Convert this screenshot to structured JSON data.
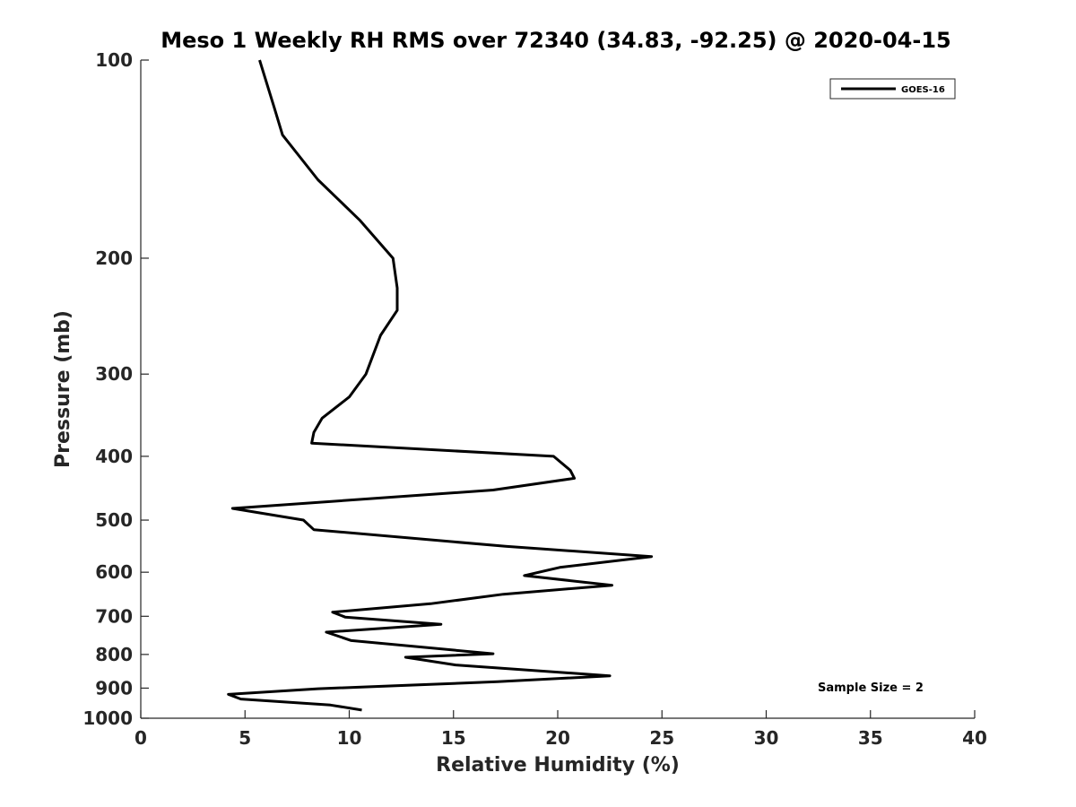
{
  "chart_data": {
    "type": "line",
    "title": "Meso 1 Weekly RH RMS over 72340 (34.83, -92.25) @ 2020-04-15",
    "xlabel": "Relative Humidity (%)",
    "ylabel": "Pressure (mb)",
    "xlim": [
      0,
      40
    ],
    "ylim": [
      100,
      1000
    ],
    "y_scale": "log",
    "y_reversed": true,
    "x_ticks": [
      0,
      5,
      10,
      15,
      20,
      25,
      30,
      35,
      40
    ],
    "y_ticks": [
      100,
      200,
      300,
      400,
      500,
      600,
      700,
      800,
      900,
      1000
    ],
    "grid": false,
    "legend_position": "top-right",
    "series": [
      {
        "name": "GOES-16",
        "color": "#000000",
        "x": [
          5.7,
          6.4,
          6.8,
          8.5,
          10.5,
          12.1,
          12.3,
          12.3,
          11.5,
          10.8,
          10.0,
          8.7,
          8.3,
          8.2,
          19.8,
          20.6,
          20.8,
          16.9,
          4.4,
          7.8,
          8.3,
          17.5,
          24.5,
          20.1,
          18.4,
          22.6,
          17.4,
          13.9,
          9.2,
          9.8,
          14.4,
          8.9,
          10.1,
          16.9,
          12.7,
          15.1,
          22.5,
          17.1,
          8.5,
          4.2,
          4.8,
          9.1,
          10.6
        ],
        "y": [
          100,
          118,
          130,
          152,
          175,
          200,
          222,
          240,
          262,
          300,
          325,
          350,
          368,
          382,
          400,
          420,
          432,
          450,
          480,
          500,
          517,
          548,
          568,
          590,
          607,
          628,
          648,
          670,
          690,
          702,
          720,
          740,
          762,
          798,
          808,
          830,
          862,
          880,
          902,
          920,
          935,
          955,
          972
        ]
      }
    ],
    "annotations": [
      "Sample Size = 2"
    ]
  }
}
